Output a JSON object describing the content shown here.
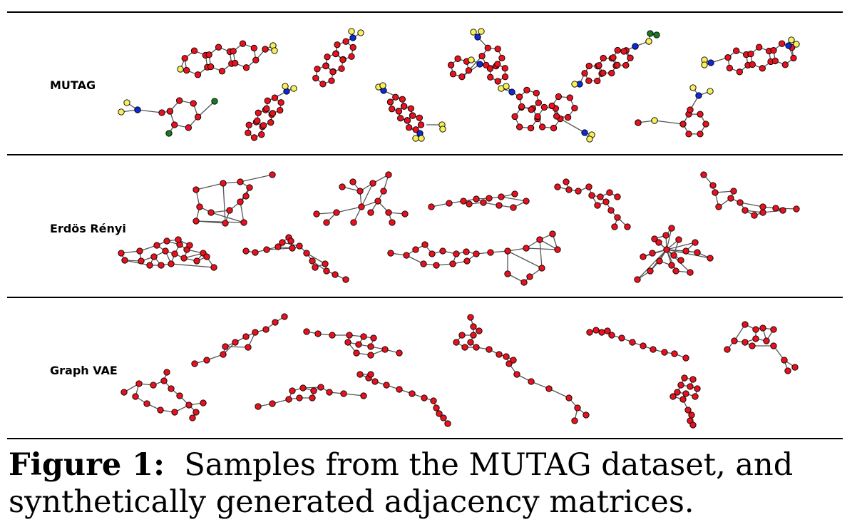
{
  "figure": {
    "rows": [
      {
        "label": "MUTAG"
      },
      {
        "label": "Erdös Rényi"
      },
      {
        "label": "Graph VAE"
      }
    ],
    "node_colors": {
      "carbon": "#e8111e",
      "nitrogen": "#1029d8",
      "oxygen": "#f6f05a",
      "chlorine": "#1a7a22",
      "edge": "#555555",
      "outline": "#000000"
    }
  },
  "caption": {
    "label": "Figure 1:",
    "text": "Samples from the MUTAG dataset, and synthetically generated adjacency matrices."
  }
}
